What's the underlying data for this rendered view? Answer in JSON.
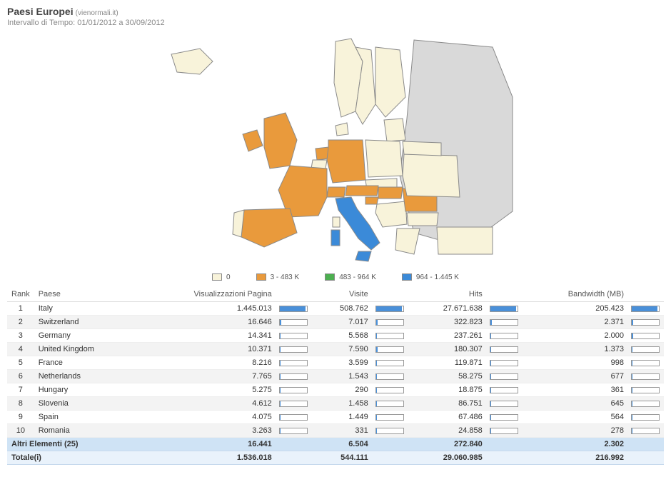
{
  "header": {
    "title": "Paesi Europei",
    "domain": "(vienormali.it)",
    "range_label": "Intervallo di Tempo:",
    "range_value": "01/01/2012 a 30/09/2012"
  },
  "legend": {
    "items": [
      {
        "color": "#f8f3da",
        "label": "0"
      },
      {
        "color": "#e99a3c",
        "label": "3 - 483 K"
      },
      {
        "color": "#4caf50",
        "label": "483 - 964 K"
      },
      {
        "color": "#3b8ad8",
        "label": "964 - 1.445 K"
      }
    ]
  },
  "map": {
    "outline_color": "#8a8a8a",
    "bg_color": "#d9d9d9",
    "zero_color": "#f8f3da",
    "orange_color": "#e99a3c",
    "blue_color": "#3b8ad8"
  },
  "table": {
    "columns": {
      "rank": "Rank",
      "country": "Paese",
      "pageviews": "Visualizzazioni Pagina",
      "visits": "Visite",
      "hits": "Hits",
      "bandwidth": "Bandwidth (MB)"
    },
    "bar_color": "#4a90d9",
    "rows": [
      {
        "rank": 1,
        "country": "Italy",
        "pageviews": "1.445.013",
        "pv_pct": 95,
        "visits": "508.762",
        "vi_pct": 95,
        "hits": "27.671.638",
        "hi_pct": 95,
        "bandwidth": "205.423",
        "bw_pct": 95
      },
      {
        "rank": 2,
        "country": "Switzerland",
        "pageviews": "16.646",
        "pv_pct": 5,
        "visits": "7.017",
        "vi_pct": 5,
        "hits": "322.823",
        "hi_pct": 5,
        "bandwidth": "2.371",
        "bw_pct": 5
      },
      {
        "rank": 3,
        "country": "Germany",
        "pageviews": "14.341",
        "pv_pct": 4,
        "visits": "5.568",
        "vi_pct": 4,
        "hits": "237.261",
        "hi_pct": 4,
        "bandwidth": "2.000",
        "bw_pct": 4
      },
      {
        "rank": 4,
        "country": "United Kingdom",
        "pageviews": "10.371",
        "pv_pct": 3,
        "visits": "7.590",
        "vi_pct": 5,
        "hits": "180.307",
        "hi_pct": 3,
        "bandwidth": "1.373",
        "bw_pct": 3
      },
      {
        "rank": 5,
        "country": "France",
        "pageviews": "8.216",
        "pv_pct": 3,
        "visits": "3.599",
        "vi_pct": 3,
        "hits": "119.871",
        "hi_pct": 2,
        "bandwidth": "998",
        "bw_pct": 2
      },
      {
        "rank": 6,
        "country": "Netherlands",
        "pageviews": "7.765",
        "pv_pct": 3,
        "visits": "1.543",
        "vi_pct": 2,
        "hits": "58.275",
        "hi_pct": 2,
        "bandwidth": "677",
        "bw_pct": 2
      },
      {
        "rank": 7,
        "country": "Hungary",
        "pageviews": "5.275",
        "pv_pct": 2,
        "visits": "290",
        "vi_pct": 1,
        "hits": "18.875",
        "hi_pct": 1,
        "bandwidth": "361",
        "bw_pct": 1
      },
      {
        "rank": 8,
        "country": "Slovenia",
        "pageviews": "4.612",
        "pv_pct": 2,
        "visits": "1.458",
        "vi_pct": 2,
        "hits": "86.751",
        "hi_pct": 2,
        "bandwidth": "645",
        "bw_pct": 2
      },
      {
        "rank": 9,
        "country": "Spain",
        "pageviews": "4.075",
        "pv_pct": 2,
        "visits": "1.449",
        "vi_pct": 2,
        "hits": "67.486",
        "hi_pct": 2,
        "bandwidth": "564",
        "bw_pct": 2
      },
      {
        "rank": 10,
        "country": "Romania",
        "pageviews": "3.263",
        "pv_pct": 2,
        "visits": "331",
        "vi_pct": 1,
        "hits": "24.858",
        "hi_pct": 1,
        "bandwidth": "278",
        "bw_pct": 1
      }
    ],
    "others": {
      "label": "Altri Elementi (25)",
      "pageviews": "16.441",
      "visits": "6.504",
      "hits": "272.840",
      "bandwidth": "2.302"
    },
    "totals": {
      "label": "Totale(i)",
      "pageviews": "1.536.018",
      "visits": "544.111",
      "hits": "29.060.985",
      "bandwidth": "216.992"
    }
  }
}
